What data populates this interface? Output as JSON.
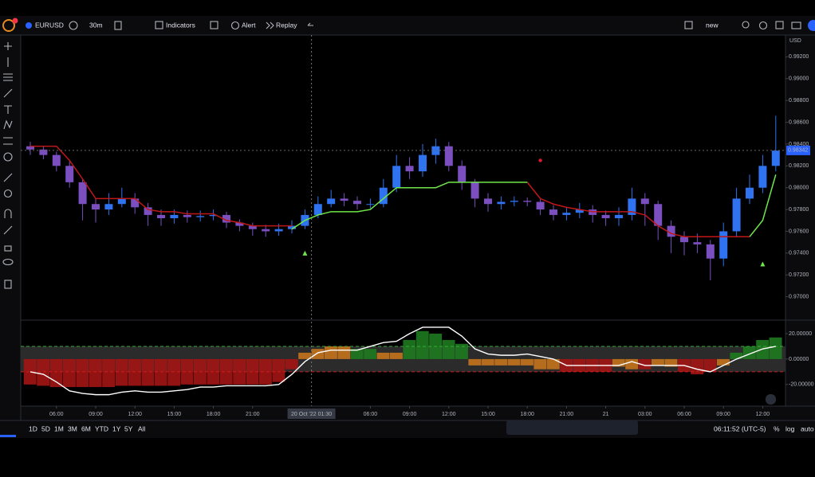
{
  "toolbar": {
    "symbol": "EURUSD",
    "interval": "30m",
    "indicators": "Indicators",
    "alert": "Alert",
    "replay": "Replay",
    "layout": "new"
  },
  "bottom_bar": {
    "ranges": [
      "1D",
      "5D",
      "1M",
      "3M",
      "6M",
      "YTD",
      "1Y",
      "5Y",
      "All"
    ],
    "clock": "06:11:52 (UTC-5)",
    "percent": "%",
    "log": "log",
    "auto": "auto"
  },
  "chart_data": [
    {
      "type": "candlestick",
      "currency": "USD",
      "last_price": 0.98342,
      "up_color": "#2f73f0",
      "down_color": "#7b4fc0",
      "open": [
        0.9838,
        0.9835,
        0.983,
        0.982,
        0.9805,
        0.9785,
        0.978,
        0.9785,
        0.979,
        0.9782,
        0.9775,
        0.9772,
        0.9775,
        0.9773,
        0.9774,
        0.9775,
        0.9768,
        0.9765,
        0.9762,
        0.976,
        0.9762,
        0.9765,
        0.9775,
        0.9785,
        0.979,
        0.9788,
        0.9785,
        0.9785,
        0.98,
        0.982,
        0.9815,
        0.983,
        0.9838,
        0.982,
        0.9805,
        0.979,
        0.9785,
        0.9787,
        0.9788,
        0.9787,
        0.978,
        0.9775,
        0.9777,
        0.978,
        0.9775,
        0.9772,
        0.9775,
        0.979,
        0.9785,
        0.9765,
        0.9755,
        0.975,
        0.9748,
        0.9735,
        0.976,
        0.979,
        0.98,
        0.982
      ],
      "high": [
        0.9842,
        0.9838,
        0.9833,
        0.9824,
        0.9808,
        0.979,
        0.9795,
        0.98,
        0.9795,
        0.9786,
        0.978,
        0.978,
        0.9779,
        0.9779,
        0.978,
        0.9778,
        0.9771,
        0.9768,
        0.9766,
        0.9767,
        0.977,
        0.978,
        0.9792,
        0.9798,
        0.9795,
        0.9792,
        0.979,
        0.9808,
        0.983,
        0.9828,
        0.984,
        0.9845,
        0.9842,
        0.9825,
        0.9808,
        0.9795,
        0.9792,
        0.9792,
        0.9791,
        0.979,
        0.9784,
        0.9782,
        0.9786,
        0.9784,
        0.9779,
        0.9782,
        0.98,
        0.9795,
        0.9788,
        0.977,
        0.976,
        0.9758,
        0.9752,
        0.9768,
        0.98,
        0.9812,
        0.983,
        0.9866
      ],
      "low": [
        0.983,
        0.9826,
        0.9815,
        0.98,
        0.977,
        0.9768,
        0.9775,
        0.9782,
        0.9776,
        0.9765,
        0.9765,
        0.9767,
        0.9768,
        0.9769,
        0.977,
        0.9763,
        0.976,
        0.9756,
        0.9755,
        0.9756,
        0.9758,
        0.9762,
        0.9772,
        0.9782,
        0.9783,
        0.978,
        0.9781,
        0.9782,
        0.9796,
        0.9808,
        0.981,
        0.9822,
        0.9815,
        0.9798,
        0.9782,
        0.9778,
        0.978,
        0.9783,
        0.9783,
        0.9775,
        0.977,
        0.977,
        0.9772,
        0.9768,
        0.9765,
        0.9765,
        0.977,
        0.9765,
        0.9752,
        0.974,
        0.9738,
        0.974,
        0.9715,
        0.9728,
        0.9755,
        0.9785,
        0.9795,
        0.9815
      ],
      "close": [
        0.9835,
        0.983,
        0.982,
        0.9805,
        0.9785,
        0.978,
        0.9785,
        0.979,
        0.9782,
        0.9775,
        0.9772,
        0.9775,
        0.9773,
        0.9774,
        0.9775,
        0.9768,
        0.9765,
        0.9762,
        0.976,
        0.9762,
        0.9765,
        0.9775,
        0.9785,
        0.979,
        0.9788,
        0.9785,
        0.9785,
        0.98,
        0.982,
        0.9815,
        0.983,
        0.9838,
        0.982,
        0.9805,
        0.979,
        0.9785,
        0.9787,
        0.9788,
        0.9787,
        0.978,
        0.9775,
        0.9777,
        0.978,
        0.9775,
        0.9772,
        0.9775,
        0.979,
        0.9785,
        0.9765,
        0.9755,
        0.975,
        0.9748,
        0.9735,
        0.976,
        0.979,
        0.98,
        0.982,
        0.9834
      ],
      "trend_lines": [
        {
          "color": "#c01818",
          "values": [
            0.9838,
            0.9838,
            0.9838,
            0.9825,
            0.9808,
            0.979,
            0.979,
            0.979,
            0.979,
            0.978,
            0.9778,
            0.9778,
            0.9776,
            0.9776,
            0.9776,
            0.977,
            0.9768,
            0.9765,
            0.9765,
            0.9765,
            0.9765,
            null,
            null,
            null,
            null,
            null,
            null,
            null,
            null,
            null,
            null,
            null,
            null,
            null,
            null,
            null,
            null,
            null,
            0.9805,
            0.979,
            0.9785,
            0.9782,
            0.978,
            0.9778,
            0.9778,
            0.9778,
            0.9778,
            0.9775,
            0.9765,
            0.9758,
            0.9755,
            0.9755,
            0.9755,
            0.9755,
            0.9755,
            0.9755,
            null,
            null
          ]
        },
        {
          "color": "#6fe64a",
          "values": [
            null,
            null,
            null,
            null,
            null,
            null,
            null,
            null,
            null,
            null,
            null,
            null,
            null,
            null,
            null,
            null,
            null,
            null,
            null,
            null,
            0.9762,
            0.977,
            0.9775,
            0.9778,
            0.9778,
            0.9778,
            0.978,
            0.979,
            0.98,
            0.98,
            0.98,
            0.98,
            0.9805,
            0.9805,
            0.9805,
            0.9805,
            0.9805,
            0.9805,
            0.9805,
            null,
            null,
            null,
            null,
            null,
            null,
            null,
            null,
            null,
            null,
            null,
            null,
            null,
            null,
            null,
            null,
            0.9755,
            0.977,
            0.9812
          ]
        }
      ],
      "signals": [
        {
          "index": 21,
          "value": 0.974,
          "color": "#6fe64a",
          "shape": "up"
        },
        {
          "index": 39,
          "value": 0.9825,
          "color": "#e0182b",
          "shape": "dot"
        },
        {
          "index": 56,
          "value": 0.973,
          "color": "#6fe64a",
          "shape": "up"
        }
      ],
      "ylim": [
        0.968,
        0.994
      ],
      "yticks": [
        {
          "value": 0.992,
          "label": "0.99200"
        },
        {
          "value": 0.99,
          "label": "0.99000"
        },
        {
          "value": 0.988,
          "label": "0.98800"
        },
        {
          "value": 0.986,
          "label": "0.98600"
        },
        {
          "value": 0.984,
          "label": "0.98400"
        },
        {
          "value": 0.982,
          "label": "0.98200"
        },
        {
          "value": 0.98,
          "label": "0.98000"
        },
        {
          "value": 0.978,
          "label": "0.97800"
        },
        {
          "value": 0.976,
          "label": "0.97600"
        },
        {
          "value": 0.974,
          "label": "0.97400"
        },
        {
          "value": 0.972,
          "label": "0.97200"
        },
        {
          "value": 0.97,
          "label": "0.97000"
        }
      ],
      "xticks": [
        {
          "value": 2,
          "label": "06:00"
        },
        {
          "value": 5,
          "label": "09:00"
        },
        {
          "value": 8,
          "label": "12:00"
        },
        {
          "value": 11,
          "label": "15:00"
        },
        {
          "value": 14,
          "label": "18:00"
        },
        {
          "value": 17,
          "label": "21:00"
        },
        {
          "value": 26,
          "label": "06:00"
        },
        {
          "value": 29,
          "label": "09:00"
        },
        {
          "value": 32,
          "label": "12:00"
        },
        {
          "value": 35,
          "label": "15:00"
        },
        {
          "value": 38,
          "label": "18:00"
        },
        {
          "value": 41,
          "label": "21:00"
        },
        {
          "value": 44,
          "label": "21"
        },
        {
          "value": 47,
          "label": "03:00"
        },
        {
          "value": 50,
          "label": "06:00"
        },
        {
          "value": 53,
          "label": "09:00"
        },
        {
          "value": 56,
          "label": "12:00"
        }
      ],
      "crosshair": {
        "index": 21.5,
        "label": "20 Oct '22  01:30"
      }
    },
    {
      "type": "histogram-line",
      "values": [
        -20,
        -21,
        -22,
        -22,
        -22,
        -22,
        -22,
        -21,
        -21,
        -21,
        -21,
        -21,
        -20,
        -20,
        -20,
        -20,
        -20,
        -20,
        -20,
        -18,
        -8,
        5,
        8,
        10,
        10,
        8,
        8,
        5,
        5,
        15,
        22,
        20,
        15,
        12,
        -5,
        -5,
        -5,
        -5,
        -5,
        -8,
        -8,
        -10,
        -10,
        -10,
        -10,
        -6,
        -8,
        -8,
        -5,
        -6,
        -10,
        -12,
        -10,
        -5,
        5,
        10,
        15,
        17
      ],
      "colors": [
        "#a31414",
        "#a31414",
        "#a31414",
        "#a31414",
        "#a31414",
        "#a31414",
        "#a31414",
        "#a31414",
        "#a31414",
        "#a31414",
        "#a31414",
        "#a31414",
        "#a31414",
        "#a31414",
        "#a31414",
        "#a31414",
        "#a31414",
        "#a31414",
        "#a31414",
        "#a31414",
        "#a31414",
        "#c4731c",
        "#c4731c",
        "#c4731c",
        "#c4731c",
        "#1e7a1e",
        "#1e7a1e",
        "#c4731c",
        "#c4731c",
        "#1e7a1e",
        "#1e7a1e",
        "#1e7a1e",
        "#1e7a1e",
        "#1e7a1e",
        "#c4731c",
        "#c4731c",
        "#c4731c",
        "#c4731c",
        "#c4731c",
        "#c4731c",
        "#c4731c",
        "#a31414",
        "#a31414",
        "#a31414",
        "#a31414",
        "#c4731c",
        "#c4731c",
        "#a31414",
        "#c4731c",
        "#c4731c",
        "#a31414",
        "#a31414",
        "#a31414",
        "#c4731c",
        "#1e7a1e",
        "#1e7a1e",
        "#1e7a1e",
        "#1e7a1e"
      ],
      "line": {
        "color": "#ffffff",
        "values": [
          -10,
          -12,
          -18,
          -25,
          -27,
          -28,
          -28,
          -26,
          -25,
          -26,
          -26,
          -25,
          -24,
          -22,
          -22,
          -21,
          -21,
          -21,
          -21,
          -20,
          -12,
          -2,
          5,
          7,
          7,
          7,
          10,
          13,
          14,
          20,
          25,
          25,
          25,
          18,
          8,
          4,
          3,
          3,
          4,
          2,
          0,
          -5,
          -5,
          -5,
          -5,
          -5,
          -2,
          -5,
          -5,
          -5,
          -5,
          -8,
          -10,
          -5,
          0,
          4,
          8,
          10
        ]
      },
      "levels": [
        {
          "value": 10,
          "color": "#3aa83a"
        },
        {
          "value": -10,
          "color": "#d01c1c"
        }
      ],
      "ylim": [
        -37,
        30
      ],
      "yticks": [
        {
          "value": 20,
          "label": "20.00000"
        },
        {
          "value": 0,
          "label": "0.00000"
        },
        {
          "value": -20,
          "label": "-20.00000"
        }
      ]
    }
  ]
}
